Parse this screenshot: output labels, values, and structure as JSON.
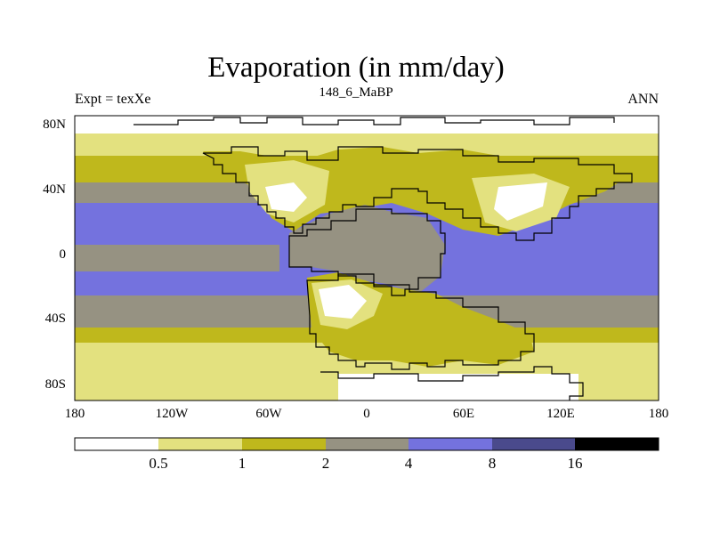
{
  "title": "Evaporation (in mm/day)",
  "subtitle": "148_6_MaBP",
  "left_label": "Expt = texXe",
  "right_label": "ANN",
  "y_ticks": [
    "80N",
    "40N",
    "0",
    "40S",
    "80S"
  ],
  "x_ticks": [
    "180",
    "120W",
    "60W",
    "0",
    "60E",
    "120E",
    "180"
  ],
  "colorbar": {
    "labels": [
      "0.5",
      "1",
      "2",
      "4",
      "8",
      "16"
    ],
    "colors": [
      "#ffffff",
      "#e3e17f",
      "#bfb81c",
      "#969282",
      "#7472de",
      "#4a4a8c",
      "#000000"
    ]
  },
  "chart_data": {
    "type": "heatmap",
    "title": "Evaporation (in mm/day)",
    "subtitle": "148_6_MaBP",
    "experiment": "texXe",
    "season": "ANN",
    "x_range": [
      -180,
      180
    ],
    "y_range": [
      -90,
      90
    ],
    "levels": [
      0.5,
      1,
      2,
      4,
      8,
      16
    ],
    "units": "mm/day"
  }
}
